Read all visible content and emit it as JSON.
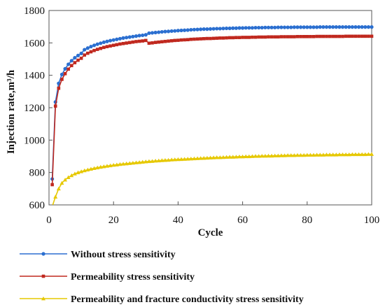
{
  "chart_data": {
    "type": "line",
    "title": "",
    "xlabel": "Cycle",
    "ylabel": "Injection rate,m³/h",
    "xlim": [
      0,
      100
    ],
    "ylim": [
      600,
      1800
    ],
    "xticks": [
      0,
      20,
      40,
      60,
      80,
      100
    ],
    "yticks": [
      600,
      800,
      1000,
      1200,
      1400,
      1600,
      1800
    ],
    "grid": false,
    "legend_position": "bottom",
    "series": [
      {
        "name": "Without stress sensitivity",
        "color": "#2b6fd0",
        "marker": "circle",
        "x": [
          1,
          2,
          3,
          4,
          5,
          6,
          7,
          8,
          9,
          10,
          11,
          12,
          13,
          14,
          15,
          16,
          17,
          18,
          19,
          20,
          21,
          22,
          23,
          24,
          25,
          26,
          27,
          28,
          29,
          30,
          31,
          32,
          33,
          34,
          35,
          36,
          37,
          38,
          39,
          40,
          41,
          42,
          43,
          44,
          45,
          46,
          47,
          48,
          49,
          50,
          51,
          52,
          53,
          54,
          55,
          56,
          57,
          58,
          59,
          60,
          61,
          62,
          63,
          64,
          65,
          66,
          67,
          68,
          69,
          70,
          71,
          72,
          73,
          74,
          75,
          76,
          77,
          78,
          79,
          80,
          81,
          82,
          83,
          84,
          85,
          86,
          87,
          88,
          89,
          90,
          91,
          92,
          93,
          94,
          95,
          96,
          97,
          98,
          99,
          100
        ],
        "y": [
          760,
          1235,
          1350,
          1405,
          1440,
          1468,
          1490,
          1508,
          1522,
          1535,
          1558,
          1568,
          1577,
          1585,
          1592,
          1598,
          1604,
          1609,
          1614,
          1618,
          1622,
          1626,
          1630,
          1633,
          1636,
          1639,
          1642,
          1645,
          1647,
          1650,
          1660,
          1662,
          1664,
          1666,
          1668,
          1670,
          1671,
          1673,
          1674,
          1676,
          1677,
          1678,
          1679,
          1681,
          1682,
          1683,
          1684,
          1685,
          1685,
          1686,
          1687,
          1688,
          1688,
          1689,
          1690,
          1690,
          1691,
          1691,
          1692,
          1692,
          1693,
          1693,
          1693,
          1694,
          1694,
          1694,
          1695,
          1695,
          1695,
          1695,
          1696,
          1696,
          1696,
          1696,
          1696,
          1697,
          1697,
          1697,
          1697,
          1697,
          1697,
          1697,
          1697,
          1698,
          1698,
          1698,
          1698,
          1698,
          1698,
          1698,
          1698,
          1698,
          1698,
          1698,
          1698,
          1698,
          1698,
          1698,
          1698,
          1698
        ]
      },
      {
        "name": "Permeability stress sensitivity",
        "color": "#c0281e",
        "marker": "square",
        "x": [
          1,
          2,
          3,
          4,
          5,
          6,
          7,
          8,
          9,
          10,
          11,
          12,
          13,
          14,
          15,
          16,
          17,
          18,
          19,
          20,
          21,
          22,
          23,
          24,
          25,
          26,
          27,
          28,
          29,
          30,
          31,
          32,
          33,
          34,
          35,
          36,
          37,
          38,
          39,
          40,
          41,
          42,
          43,
          44,
          45,
          46,
          47,
          48,
          49,
          50,
          51,
          52,
          53,
          54,
          55,
          56,
          57,
          58,
          59,
          60,
          61,
          62,
          63,
          64,
          65,
          66,
          67,
          68,
          69,
          70,
          71,
          72,
          73,
          74,
          75,
          76,
          77,
          78,
          79,
          80,
          81,
          82,
          83,
          84,
          85,
          86,
          87,
          88,
          89,
          90,
          91,
          92,
          93,
          94,
          95,
          96,
          97,
          98,
          99,
          100
        ],
        "y": [
          725,
          1210,
          1320,
          1375,
          1410,
          1438,
          1460,
          1478,
          1493,
          1505,
          1525,
          1536,
          1545,
          1553,
          1560,
          1566,
          1572,
          1577,
          1581,
          1585,
          1589,
          1593,
          1596,
          1599,
          1602,
          1605,
          1608,
          1610,
          1612,
          1615,
          1598,
          1600,
          1603,
          1605,
          1607,
          1609,
          1611,
          1613,
          1615,
          1616,
          1618,
          1619,
          1620,
          1622,
          1623,
          1624,
          1625,
          1626,
          1627,
          1627,
          1628,
          1629,
          1630,
          1630,
          1631,
          1632,
          1632,
          1633,
          1633,
          1634,
          1634,
          1634,
          1635,
          1635,
          1636,
          1636,
          1636,
          1637,
          1637,
          1637,
          1637,
          1638,
          1638,
          1638,
          1638,
          1638,
          1639,
          1639,
          1639,
          1639,
          1639,
          1639,
          1640,
          1640,
          1640,
          1640,
          1640,
          1640,
          1640,
          1640,
          1640,
          1641,
          1641,
          1641,
          1641,
          1641,
          1641,
          1641,
          1641,
          1641
        ]
      },
      {
        "name": "Permeability and fracture conductivity stress sensitivity",
        "color": "#e6c800",
        "marker": "triangle",
        "x": [
          1,
          2,
          3,
          4,
          5,
          6,
          7,
          8,
          9,
          10,
          11,
          12,
          13,
          14,
          15,
          16,
          17,
          18,
          19,
          20,
          21,
          22,
          23,
          24,
          25,
          26,
          27,
          28,
          29,
          30,
          31,
          32,
          33,
          34,
          35,
          36,
          37,
          38,
          39,
          40,
          41,
          42,
          43,
          44,
          45,
          46,
          47,
          48,
          49,
          50,
          51,
          52,
          53,
          54,
          55,
          56,
          57,
          58,
          59,
          60,
          61,
          62,
          63,
          64,
          65,
          66,
          67,
          68,
          69,
          70,
          71,
          72,
          73,
          74,
          75,
          76,
          77,
          78,
          79,
          80,
          81,
          82,
          83,
          84,
          85,
          86,
          87,
          88,
          89,
          90,
          91,
          92,
          93,
          94,
          95,
          96,
          97,
          98,
          99,
          100
        ],
        "y": [
          590,
          650,
          700,
          735,
          755,
          770,
          782,
          792,
          800,
          806,
          812,
          817,
          822,
          826,
          830,
          834,
          837,
          840,
          843,
          846,
          848,
          851,
          853,
          855,
          857,
          859,
          861,
          863,
          865,
          867,
          869,
          870,
          872,
          873,
          875,
          876,
          877,
          879,
          880,
          881,
          882,
          883,
          884,
          885,
          886,
          887,
          888,
          889,
          890,
          891,
          892,
          893,
          893,
          894,
          895,
          896,
          896,
          897,
          898,
          898,
          899,
          899,
          900,
          901,
          901,
          902,
          902,
          903,
          903,
          904,
          904,
          905,
          905,
          906,
          906,
          906,
          907,
          907,
          907,
          908,
          908,
          908,
          909,
          909,
          909,
          910,
          910,
          910,
          910,
          911,
          911,
          911,
          911,
          912,
          912,
          912,
          912,
          912,
          913,
          913
        ]
      }
    ]
  }
}
